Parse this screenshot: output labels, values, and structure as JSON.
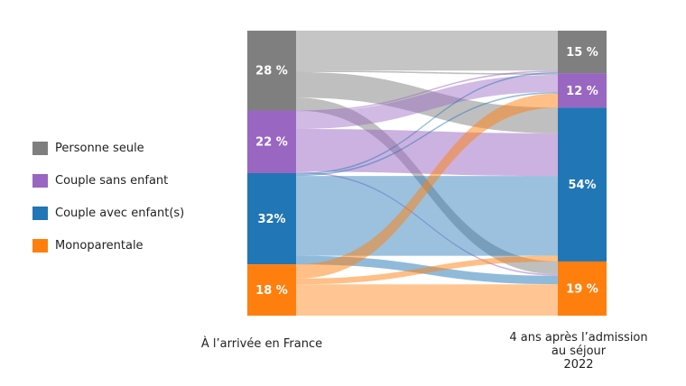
{
  "chart_data": {
    "type": "sankey",
    "left_axis_label": "À l’arrivée en France",
    "right_axis_label_lines": [
      "4 ans après l’admission",
      "au séjour",
      "2022"
    ],
    "categories": [
      "Personne seule",
      "Couple sans enfant",
      "Couple avec enfant(s)",
      "Monoparentale"
    ],
    "colors": {
      "Personne seule": "#7f7f7f",
      "Couple sans enfant": "#9966c2",
      "Couple avec enfant(s)": "#2176b5",
      "Monoparentale": "#ff7f0e"
    },
    "left": [
      {
        "category": "Personne seule",
        "value": 28,
        "label": "28 %"
      },
      {
        "category": "Couple sans enfant",
        "value": 22,
        "label": "22 %"
      },
      {
        "category": "Couple avec enfant(s)",
        "value": 32,
        "label": "32%"
      },
      {
        "category": "Monoparentale",
        "value": 18,
        "label": "18 %"
      }
    ],
    "right": [
      {
        "category": "Personne seule",
        "value": 15,
        "label": "15 %"
      },
      {
        "category": "Couple sans enfant",
        "value": 12,
        "label": "12 %"
      },
      {
        "category": "Couple avec enfant(s)",
        "value": 54,
        "label": "54%"
      },
      {
        "category": "Monoparentale",
        "value": 19,
        "label": "19 %"
      }
    ],
    "flows": [
      {
        "from": "Personne seule",
        "to": "Personne seule",
        "value": 14
      },
      {
        "from": "Personne seule",
        "to": "Couple sans enfant",
        "value": 0.5
      },
      {
        "from": "Personne seule",
        "to": "Couple avec enfant(s)",
        "value": 9
      },
      {
        "from": "Personne seule",
        "to": "Monoparentale",
        "value": 4.5
      },
      {
        "from": "Couple sans enfant",
        "to": "Personne seule",
        "value": 0.5
      },
      {
        "from": "Couple sans enfant",
        "to": "Couple sans enfant",
        "value": 6
      },
      {
        "from": "Couple sans enfant",
        "to": "Couple avec enfant(s)",
        "value": 15
      },
      {
        "from": "Couple sans enfant",
        "to": "Monoparentale",
        "value": 0.5
      },
      {
        "from": "Couple avec enfant(s)",
        "to": "Personne seule",
        "value": 0.5
      },
      {
        "from": "Couple avec enfant(s)",
        "to": "Couple sans enfant",
        "value": 0.5
      },
      {
        "from": "Couple avec enfant(s)",
        "to": "Couple avec enfant(s)",
        "value": 28
      },
      {
        "from": "Couple avec enfant(s)",
        "to": "Monoparentale",
        "value": 3
      },
      {
        "from": "Monoparentale",
        "to": "Personne seule",
        "value": 0
      },
      {
        "from": "Monoparentale",
        "to": "Couple sans enfant",
        "value": 5
      },
      {
        "from": "Monoparentale",
        "to": "Couple avec enfant(s)",
        "value": 2
      },
      {
        "from": "Monoparentale",
        "to": "Monoparentale",
        "value": 11
      }
    ]
  }
}
